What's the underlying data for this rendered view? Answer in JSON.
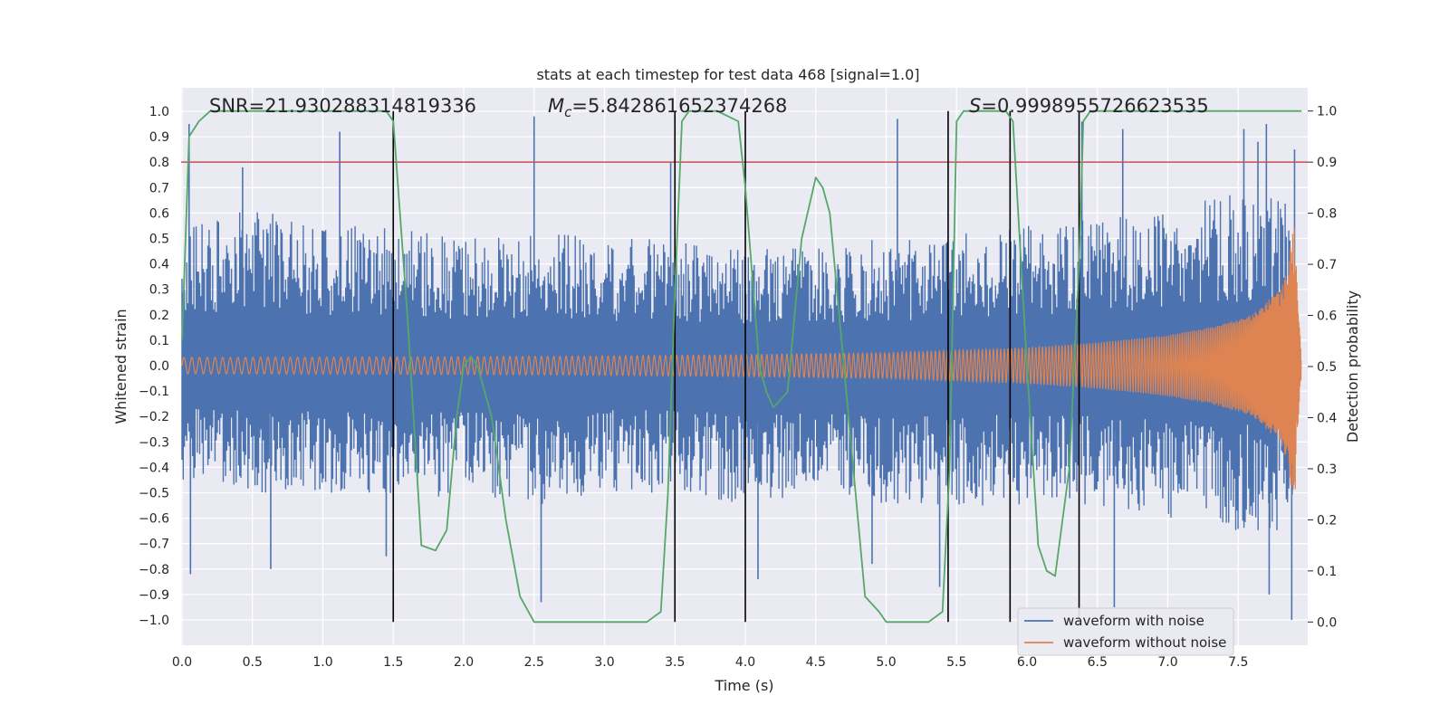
{
  "chart_data": {
    "type": "line",
    "title": "stats at each timestep for test data 468 [signal=1.0]",
    "xlabel": "Time (s)",
    "ylabel": "Whitened strain",
    "y2label": "Detection probability",
    "xlim": [
      0.0,
      8.0
    ],
    "ylim": [
      -1.1,
      1.1
    ],
    "y2lim": [
      -0.0455,
      1.0455
    ],
    "xticks": [
      "0.0",
      "0.5",
      "1.0",
      "1.5",
      "2.0",
      "2.5",
      "3.0",
      "3.5",
      "4.0",
      "4.5",
      "5.0",
      "5.5",
      "6.0",
      "6.5",
      "7.0",
      "7.5"
    ],
    "yticks": [
      "1.0",
      "0.9",
      "0.8",
      "0.7",
      "0.6",
      "0.5",
      "0.4",
      "0.3",
      "0.2",
      "0.1",
      "0.0",
      "−0.1",
      "−0.2",
      "−0.3",
      "−0.4",
      "−0.5",
      "−0.6",
      "−0.7",
      "−0.8",
      "−0.9",
      "−1.0"
    ],
    "y2ticks": [
      "1.0",
      "0.9",
      "0.8",
      "0.7",
      "0.6",
      "0.5",
      "0.4",
      "0.3",
      "0.2",
      "0.1",
      "0.0"
    ],
    "annotations": {
      "snr": "SNR=21.930288314819336",
      "mc_symbol": "M",
      "mc_sub": "c",
      "mc_value": "=5.842861652374268",
      "s_symbol": "S",
      "s_value": "=0.9998955726623535"
    },
    "threshold": {
      "y2": 0.9,
      "color": "#c44e52"
    },
    "event_lines": {
      "x": [
        1.5,
        3.5,
        4.0,
        5.44,
        5.88,
        6.37
      ],
      "color": "#000000"
    },
    "series": [
      {
        "name": "waveform with noise",
        "color": "#4c72b0",
        "envelope": {
          "x": [
            0.0,
            0.5,
            1.0,
            1.5,
            2.0,
            2.5,
            3.0,
            3.5,
            4.0,
            4.5,
            5.0,
            5.5,
            6.0,
            6.5,
            7.0,
            7.5,
            7.9
          ],
          "top": [
            0.55,
            0.62,
            0.55,
            0.55,
            0.5,
            0.55,
            0.5,
            0.5,
            0.45,
            0.48,
            0.5,
            0.52,
            0.55,
            0.58,
            0.62,
            0.68,
            0.65
          ],
          "bot": [
            -0.45,
            -0.5,
            -0.5,
            -0.55,
            -0.5,
            -0.55,
            -0.5,
            -0.5,
            -0.55,
            -0.5,
            -0.55,
            -0.55,
            -0.55,
            -0.55,
            -0.6,
            -0.65,
            -0.7
          ]
        },
        "spikes": [
          [
            0.05,
            0.95
          ],
          [
            0.43,
            0.78
          ],
          [
            1.12,
            0.92
          ],
          [
            2.5,
            0.98
          ],
          [
            3.47,
            0.8
          ],
          [
            5.08,
            0.97
          ],
          [
            6.39,
            0.96
          ],
          [
            6.68,
            0.93
          ],
          [
            7.54,
            0.93
          ],
          [
            7.64,
            0.88
          ],
          [
            7.7,
            0.95
          ],
          [
            7.9,
            0.85
          ],
          [
            0.06,
            -0.82
          ],
          [
            0.63,
            -0.8
          ],
          [
            1.45,
            -0.75
          ],
          [
            2.55,
            -0.93
          ],
          [
            4.09,
            -0.84
          ],
          [
            4.9,
            -0.78
          ],
          [
            5.38,
            -0.87
          ],
          [
            6.62,
            -0.95
          ],
          [
            7.72,
            -0.9
          ],
          [
            7.88,
            -1.0
          ]
        ]
      },
      {
        "name": "waveform without noise",
        "color": "#dd8452",
        "amplitude": {
          "x": [
            0.0,
            1.0,
            2.0,
            3.0,
            4.0,
            5.0,
            6.0,
            6.5,
            7.0,
            7.3,
            7.5,
            7.6,
            7.7,
            7.8,
            7.85,
            7.88,
            7.9,
            7.92,
            7.95
          ],
          "a": [
            0.032,
            0.033,
            0.035,
            0.038,
            0.043,
            0.05,
            0.07,
            0.09,
            0.12,
            0.15,
            0.18,
            0.2,
            0.25,
            0.3,
            0.38,
            0.5,
            0.55,
            0.3,
            0.02
          ]
        }
      },
      {
        "name": "detection probability",
        "color": "#55a868",
        "axis": "right",
        "x": [
          0.0,
          0.05,
          0.12,
          0.2,
          0.3,
          0.5,
          1.0,
          1.45,
          1.5,
          1.6,
          1.7,
          1.8,
          1.88,
          1.95,
          2.0,
          2.05,
          2.1,
          2.2,
          2.3,
          2.4,
          2.5,
          2.6,
          3.0,
          3.3,
          3.4,
          3.45,
          3.5,
          3.55,
          3.6,
          3.65,
          3.8,
          3.95,
          4.0,
          4.1,
          4.15,
          4.2,
          4.3,
          4.4,
          4.5,
          4.55,
          4.6,
          4.7,
          4.85,
          4.95,
          5.0,
          5.1,
          5.3,
          5.4,
          5.45,
          5.5,
          5.55,
          5.6,
          5.85,
          5.9,
          6.0,
          6.08,
          6.14,
          6.2,
          6.3,
          6.37,
          6.4,
          6.45,
          7.0,
          7.5,
          7.95
        ],
        "y": [
          0.55,
          0.95,
          0.98,
          1.0,
          1.0,
          1.0,
          1.0,
          1.0,
          0.98,
          0.6,
          0.15,
          0.14,
          0.18,
          0.4,
          0.5,
          0.52,
          0.5,
          0.4,
          0.2,
          0.05,
          0.0,
          0.0,
          0.0,
          0.0,
          0.02,
          0.25,
          0.65,
          0.98,
          1.0,
          1.0,
          1.0,
          0.98,
          0.85,
          0.5,
          0.45,
          0.42,
          0.45,
          0.75,
          0.87,
          0.85,
          0.8,
          0.5,
          0.05,
          0.02,
          0.0,
          0.0,
          0.0,
          0.02,
          0.3,
          0.98,
          1.0,
          1.0,
          1.0,
          0.98,
          0.5,
          0.15,
          0.1,
          0.09,
          0.3,
          0.7,
          0.98,
          1.0,
          1.0,
          1.0,
          1.0
        ]
      }
    ],
    "legend": {
      "placement": "lower-right",
      "entries": [
        "waveform with noise",
        "waveform without noise"
      ]
    }
  }
}
